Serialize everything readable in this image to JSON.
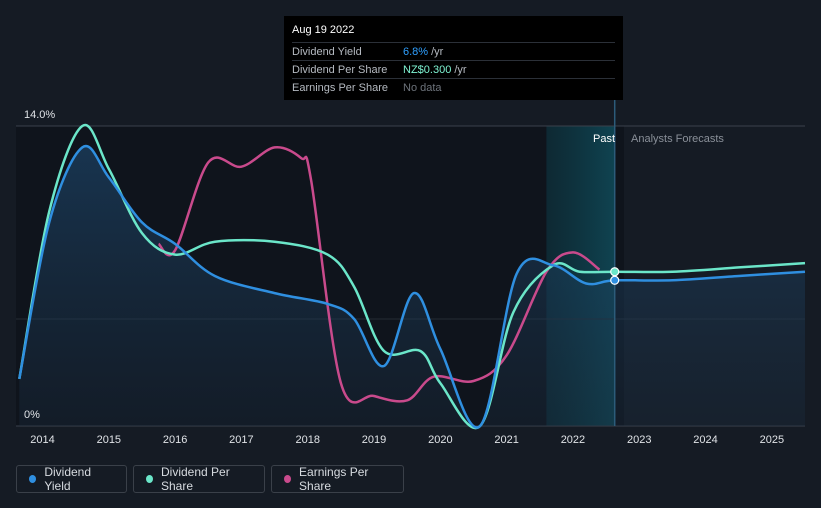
{
  "tooltip": {
    "date": "Aug 19 2022",
    "rows": [
      {
        "label": "Dividend Yield",
        "value": "6.8%",
        "unit": "/yr"
      },
      {
        "label": "Dividend Per Share",
        "value": "NZ$0.300",
        "unit": "/yr"
      },
      {
        "label": "Earnings Per Share",
        "value": "No data",
        "unit": ""
      }
    ]
  },
  "legend": [
    {
      "label": "Dividend Yield",
      "color": "#2f8fe0"
    },
    {
      "label": "Dividend Per Share",
      "color": "#6be6c9"
    },
    {
      "label": "Earnings Per Share",
      "color": "#c94a8c"
    }
  ],
  "chart_data": {
    "type": "line",
    "y_axis_labels": [
      "14.0%",
      "0%"
    ],
    "ylim": [
      0,
      14.0
    ],
    "xlim": [
      2013.6,
      2025.5
    ],
    "x_ticks": [
      "2014",
      "2015",
      "2016",
      "2017",
      "2018",
      "2019",
      "2020",
      "2021",
      "2022",
      "2023",
      "2024",
      "2025"
    ],
    "regions": {
      "past_label": "Past",
      "forecast_label": "Analysts Forecasts",
      "past_start": 2021.6,
      "now": 2022.63
    },
    "series": [
      {
        "name": "Dividend Yield",
        "color": "#2f8fe0",
        "points": [
          [
            2013.65,
            2.2
          ],
          [
            2014.1,
            9.5
          ],
          [
            2014.6,
            13.0
          ],
          [
            2015.0,
            11.6
          ],
          [
            2015.5,
            9.5
          ],
          [
            2016.0,
            8.5
          ],
          [
            2016.6,
            7.0
          ],
          [
            2017.5,
            6.2
          ],
          [
            2018.3,
            5.7
          ],
          [
            2018.7,
            5.0
          ],
          [
            2019.15,
            2.8
          ],
          [
            2019.6,
            6.2
          ],
          [
            2020.0,
            3.6
          ],
          [
            2020.6,
            0.0
          ],
          [
            2021.15,
            7.1
          ],
          [
            2021.7,
            7.5
          ],
          [
            2022.2,
            6.65
          ],
          [
            2022.63,
            6.8
          ],
          [
            2023.5,
            6.8
          ],
          [
            2024.5,
            7.0
          ],
          [
            2025.5,
            7.2
          ]
        ]
      },
      {
        "name": "Dividend Per Share",
        "color": "#6be6c9",
        "points": [
          [
            2013.65,
            2.2
          ],
          [
            2014.1,
            10.0
          ],
          [
            2014.6,
            14.0
          ],
          [
            2015.0,
            12.0
          ],
          [
            2015.5,
            9.0
          ],
          [
            2016.0,
            8.0
          ],
          [
            2016.6,
            8.6
          ],
          [
            2017.5,
            8.6
          ],
          [
            2018.3,
            8.0
          ],
          [
            2018.7,
            6.5
          ],
          [
            2019.15,
            3.5
          ],
          [
            2019.7,
            3.5
          ],
          [
            2020.0,
            2.0
          ],
          [
            2020.6,
            0.0
          ],
          [
            2021.1,
            5.3
          ],
          [
            2021.7,
            7.5
          ],
          [
            2022.1,
            7.2
          ],
          [
            2022.63,
            7.2
          ],
          [
            2023.5,
            7.2
          ],
          [
            2024.5,
            7.4
          ],
          [
            2025.5,
            7.6
          ]
        ]
      },
      {
        "name": "Earnings Per Share",
        "color": "#c94a8c",
        "points": [
          [
            2015.75,
            8.5
          ],
          [
            2016.0,
            8.2
          ],
          [
            2016.5,
            12.3
          ],
          [
            2017.0,
            12.1
          ],
          [
            2017.5,
            13.0
          ],
          [
            2017.9,
            12.5
          ],
          [
            2018.05,
            11.5
          ],
          [
            2018.5,
            2.0
          ],
          [
            2019.0,
            1.4
          ],
          [
            2019.5,
            1.2
          ],
          [
            2019.9,
            2.3
          ],
          [
            2020.5,
            2.1
          ],
          [
            2021.0,
            3.3
          ],
          [
            2021.6,
            7.2
          ],
          [
            2022.0,
            8.1
          ],
          [
            2022.4,
            7.3
          ]
        ]
      }
    ],
    "markers": [
      {
        "series": "Dividend Yield",
        "x": 2022.63,
        "y": 6.8
      },
      {
        "series": "Dividend Per Share",
        "x": 2022.63,
        "y": 7.2
      }
    ]
  }
}
